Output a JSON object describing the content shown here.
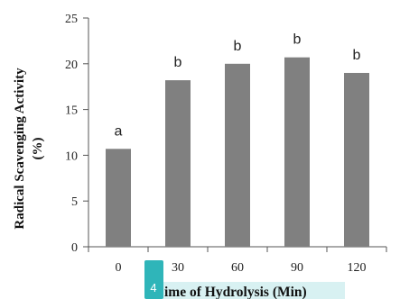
{
  "chart_data": {
    "type": "bar",
    "categories": [
      "0",
      "30",
      "60",
      "90",
      "120"
    ],
    "values": [
      10.7,
      18.2,
      20.0,
      20.7,
      19.0
    ],
    "significance": [
      "a",
      "b",
      "b",
      "b",
      "b"
    ],
    "ylim": [
      0,
      25
    ],
    "yticks": [
      "0",
      "5",
      "10",
      "15",
      "20",
      "25"
    ],
    "ylabel_line1": "Radical Scavenging Activity",
    "ylabel_line2": "(%)",
    "xlabel": "ime of Hydrolysis (Min)",
    "bar_color": "#808080",
    "grid": false
  },
  "overlay": {
    "badge_text": "4",
    "badge_color": "#2fb5b9",
    "label_highlight_color": "#d8f1f2"
  }
}
